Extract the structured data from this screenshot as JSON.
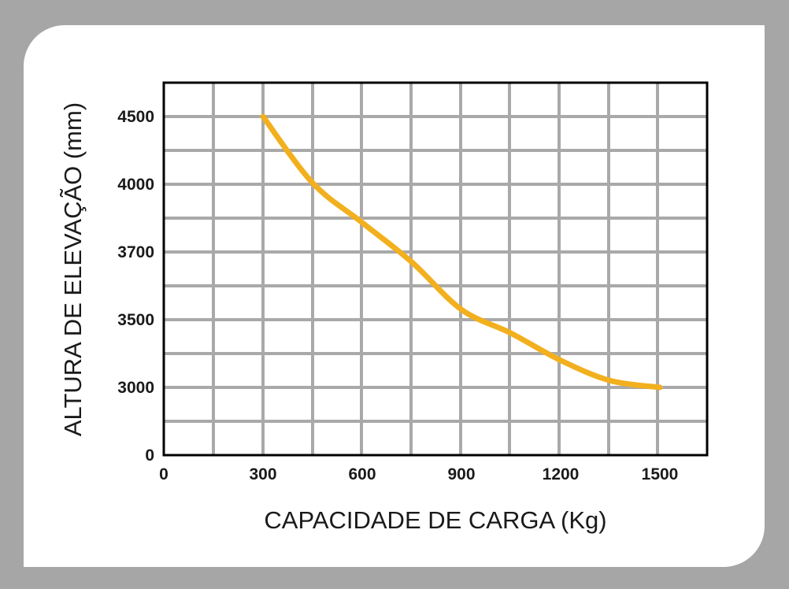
{
  "chart_data": {
    "type": "line",
    "xlabel": "CAPACIDADE DE CARGA (Kg)",
    "ylabel": "ALTURA DE ELEVAÇÃO (mm)",
    "x_ticks": [
      "0",
      "300",
      "600",
      "900",
      "1200",
      "1500"
    ],
    "y_ticks": [
      "0",
      "3000",
      "3500",
      "3700",
      "4000",
      "4500"
    ],
    "grid": true,
    "series": [
      {
        "color": "#f2b01e",
        "points": [
          {
            "x": 300,
            "y": 4500
          },
          {
            "x": 450,
            "y": 4010
          },
          {
            "x": 600,
            "y": 3830
          },
          {
            "x": 750,
            "y": 3670
          },
          {
            "x": 900,
            "y": 3530
          },
          {
            "x": 1050,
            "y": 3400
          },
          {
            "x": 1200,
            "y": 3200
          },
          {
            "x": 1350,
            "y": 3050
          },
          {
            "x": 1500,
            "y": 3000
          }
        ]
      }
    ],
    "colors": {
      "grid": "#a9a9a9",
      "frame": "#000000",
      "line": "#f2b01e"
    }
  }
}
